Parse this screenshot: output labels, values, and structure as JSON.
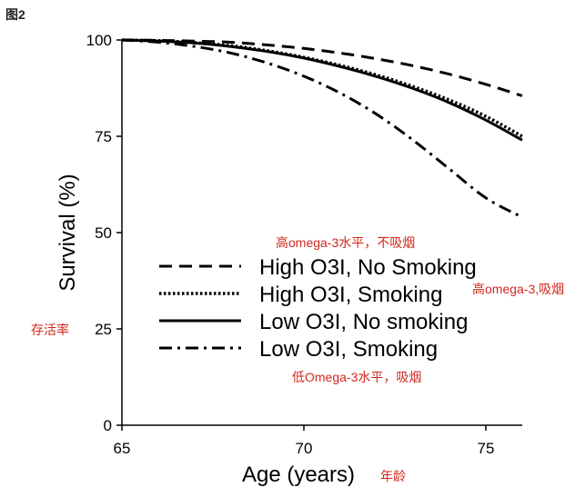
{
  "figure_label": "图2",
  "chart_data": {
    "type": "line",
    "xlabel": "Age (years)",
    "ylabel": "Survival (%)",
    "xlim": [
      65,
      76
    ],
    "ylim": [
      0,
      100
    ],
    "xticks": [
      65,
      70,
      75
    ],
    "yticks": [
      0,
      25,
      50,
      75,
      100
    ],
    "grid": false,
    "legend_position": "bottom-center",
    "series": [
      {
        "name": "High O3I, No Smoking",
        "style": "dashed",
        "x": [
          65,
          66,
          67,
          68,
          69,
          70,
          71,
          72,
          73,
          74,
          75,
          76
        ],
        "y": [
          100,
          99.9,
          99.7,
          99.4,
          98.7,
          97.8,
          96.6,
          95.1,
          93.3,
          91.1,
          88.5,
          85.5
        ]
      },
      {
        "name": "High O3I, Smoking",
        "style": "dotted",
        "x": [
          65,
          66,
          67,
          68,
          69,
          70,
          71,
          72,
          73,
          74,
          75,
          76
        ],
        "y": [
          100,
          99.8,
          99.3,
          98.5,
          97.2,
          95.5,
          93.4,
          90.9,
          87.9,
          84.4,
          80.2,
          75.0
        ]
      },
      {
        "name": "Low O3I, No smoking",
        "style": "solid",
        "x": [
          65,
          66,
          67,
          68,
          69,
          70,
          71,
          72,
          73,
          74,
          75,
          76
        ],
        "y": [
          100,
          99.7,
          99.2,
          98.3,
          97.0,
          95.3,
          93.1,
          90.5,
          87.4,
          83.7,
          79.2,
          74.0
        ]
      },
      {
        "name": "Low O3I, Smoking",
        "style": "dashdot",
        "x": [
          65,
          66,
          67,
          68,
          69,
          70,
          71,
          72,
          73,
          74,
          75,
          76
        ],
        "y": [
          100,
          99.4,
          98.3,
          96.6,
          94.0,
          90.6,
          86.2,
          80.7,
          74.0,
          66.5,
          59.0,
          54.0
        ]
      }
    ]
  },
  "annotations": {
    "high_no_smoking": "高omega-3水平，不吸烟",
    "high_smoking": "高omega-3,吸烟",
    "low_smoking": "低Omega-3水平，吸烟",
    "y_axis": "存活率",
    "x_axis": "年龄"
  },
  "colors": {
    "line": "#000000",
    "annotation": "#d0281e"
  }
}
